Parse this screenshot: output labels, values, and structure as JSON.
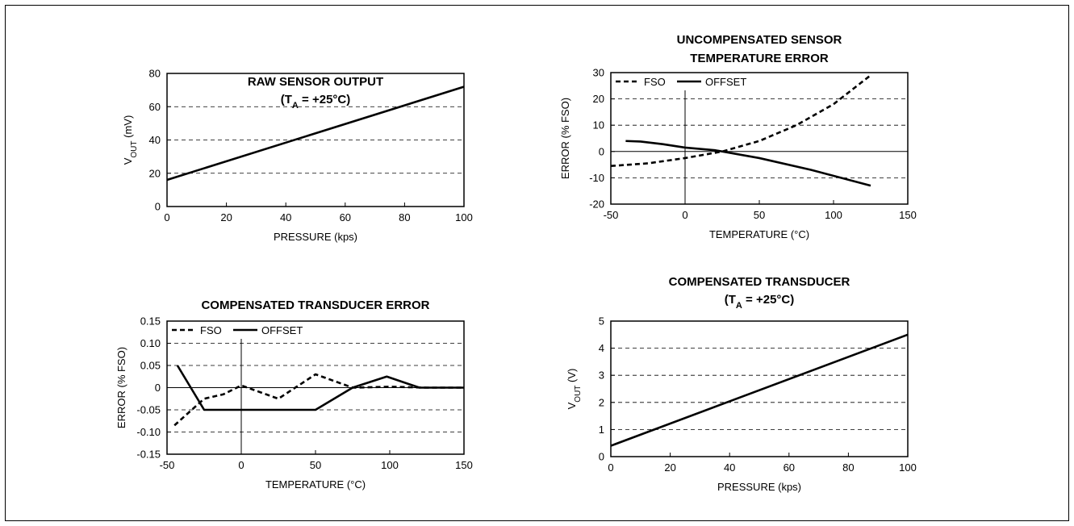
{
  "chart_data": [
    {
      "type": "line",
      "title_lines": [
        {
          "text": "RAW SENSOR OUTPUT"
        },
        {
          "text": "(T",
          "sub": "A",
          "tail": " = +25°C)"
        }
      ],
      "xlabel": "PRESSURE (kps)",
      "ylabel": "V",
      "ylabel_sub": "OUT",
      "ylabel_tail": " (mV)",
      "xlim": [
        0,
        100
      ],
      "ylim": [
        0,
        80
      ],
      "xticks": [
        0,
        20,
        40,
        60,
        80,
        100
      ],
      "yticks": [
        0,
        20,
        40,
        60,
        80
      ],
      "tick_labels_x": [
        "0",
        "20",
        "40",
        "60",
        "80",
        "100"
      ],
      "tick_labels_y": [
        "0",
        "20",
        "40",
        "60",
        "80"
      ],
      "grid": "dashed horizontal",
      "series": [
        {
          "style": "solid",
          "x": [
            0,
            100
          ],
          "y": [
            16,
            72
          ]
        }
      ]
    },
    {
      "type": "line",
      "title_lines": [
        {
          "text": "UNCOMPENSATED SENSOR"
        },
        {
          "text": "TEMPERATURE ERROR"
        }
      ],
      "xlabel": "TEMPERATURE (°C)",
      "ylabel": "ERROR (% FSO)",
      "xlim": [
        -50,
        150
      ],
      "ylim": [
        -20,
        30
      ],
      "xticks": [
        -50,
        0,
        50,
        100,
        150
      ],
      "yticks": [
        -20,
        -10,
        0,
        10,
        20,
        30
      ],
      "tick_labels_x": [
        "-50",
        "0",
        "50",
        "100",
        "150"
      ],
      "tick_labels_y": [
        "-20",
        "-10",
        "0",
        "10",
        "20",
        "30"
      ],
      "grid": "dashed horizontal",
      "legend": "top-left",
      "series": [
        {
          "name": "FSO",
          "style": "dashed",
          "x": [
            -50,
            -25,
            0,
            25,
            50,
            75,
            100,
            125
          ],
          "y": [
            -5.5,
            -4.5,
            -2.5,
            0,
            4,
            10,
            18,
            29
          ]
        },
        {
          "name": "OFFSET",
          "style": "solid",
          "x": [
            -40,
            -30,
            -15,
            0,
            20,
            50,
            85,
            125
          ],
          "y": [
            4,
            3.8,
            2.8,
            1.5,
            0.5,
            -2.5,
            -7,
            -13
          ]
        }
      ]
    },
    {
      "type": "line",
      "title_lines": [
        {
          "text": "COMPENSATED TRANSDUCER ERROR"
        }
      ],
      "xlabel": "TEMPERATURE (°C)",
      "ylabel": "ERROR (% FSO)",
      "xlim": [
        -50,
        150
      ],
      "ylim": [
        -0.15,
        0.15
      ],
      "xticks": [
        -50,
        0,
        50,
        100,
        150
      ],
      "yticks": [
        -0.15,
        -0.1,
        -0.05,
        0,
        0.05,
        0.1,
        0.15
      ],
      "tick_labels_x": [
        "-50",
        "0",
        "50",
        "100",
        "150"
      ],
      "tick_labels_y": [
        "-0.15",
        "-0.10",
        "-0.05",
        "0",
        "0.05",
        "0.10",
        "0.15"
      ],
      "grid": "dashed horizontal",
      "legend": "top-left",
      "series": [
        {
          "name": "FSO",
          "style": "dashed",
          "x": [
            -45,
            -25,
            -12,
            0,
            25,
            50,
            75,
            100,
            125,
            150
          ],
          "y": [
            -0.085,
            -0.025,
            -0.015,
            0.005,
            -0.025,
            0.03,
            0,
            0.002,
            0,
            0
          ]
        },
        {
          "name": "OFFSET",
          "style": "solid",
          "x": [
            -43,
            -25,
            0,
            50,
            75,
            98,
            120,
            150
          ],
          "y": [
            0.05,
            -0.05,
            -0.05,
            -0.05,
            0,
            0.025,
            0,
            0
          ]
        }
      ]
    },
    {
      "type": "line",
      "title_lines": [
        {
          "text": "COMPENSATED TRANSDUCER"
        },
        {
          "text": "(T",
          "sub": "A",
          "tail": " = +25°C)"
        }
      ],
      "xlabel": "PRESSURE (kps)",
      "ylabel": "V",
      "ylabel_sub": "OUT",
      "ylabel_tail": " (V)",
      "xlim": [
        0,
        100
      ],
      "ylim": [
        0,
        5
      ],
      "xticks": [
        0,
        20,
        40,
        60,
        80,
        100
      ],
      "yticks": [
        0,
        1,
        2,
        3,
        4,
        5
      ],
      "tick_labels_x": [
        "0",
        "20",
        "40",
        "60",
        "80",
        "100"
      ],
      "tick_labels_y": [
        "0",
        "1",
        "2",
        "3",
        "4",
        "5"
      ],
      "grid": "dashed horizontal",
      "series": [
        {
          "style": "solid",
          "x": [
            0,
            100
          ],
          "y": [
            0.4,
            4.5
          ]
        }
      ]
    }
  ]
}
